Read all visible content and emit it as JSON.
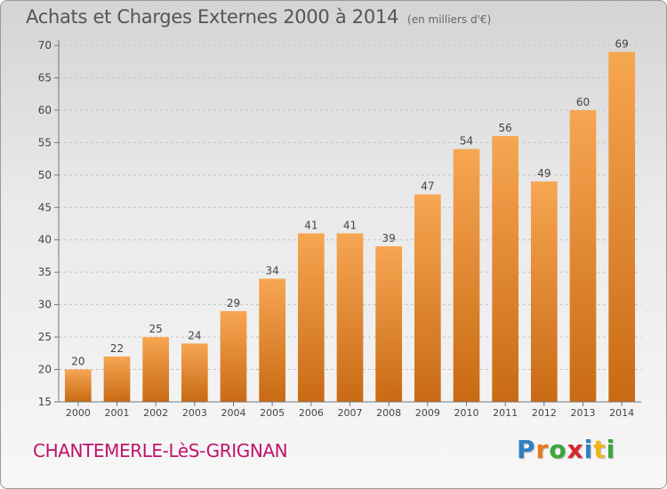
{
  "header": {
    "title": "Achats et Charges Externes 2000 à 2014",
    "subtitle": "(en milliers d'€)"
  },
  "footer": {
    "commune": "CHANTEMERLE-LèS-GRIGNAN",
    "logo_letters": [
      {
        "char": "P",
        "color": "#2f7fc4"
      },
      {
        "char": "r",
        "color": "#e8791a"
      },
      {
        "char": "o",
        "color": "#3aa639"
      },
      {
        "char": "x",
        "color": "#d6262c"
      },
      {
        "char": "i",
        "color": "#2f7fc4"
      },
      {
        "char": "t",
        "color": "#f2b41a"
      },
      {
        "char": "i",
        "color": "#3aa639"
      }
    ]
  },
  "colors": {
    "bar_top": "#f7a652",
    "bar_bottom": "#c96a14",
    "grid": "#c4c4c4",
    "axis": "#777777",
    "text": "#444444"
  },
  "chart_data": {
    "type": "bar",
    "categories": [
      "2000",
      "2001",
      "2002",
      "2003",
      "2004",
      "2005",
      "2006",
      "2007",
      "2008",
      "2009",
      "2010",
      "2011",
      "2012",
      "2013",
      "2014"
    ],
    "values": [
      20,
      22,
      25,
      24,
      29,
      34,
      41,
      41,
      39,
      47,
      54,
      56,
      49,
      60,
      69
    ],
    "title": "Achats et Charges Externes 2000 à 2014",
    "xlabel": "",
    "ylabel": "",
    "ylim": [
      15,
      70
    ],
    "yticks": [
      15,
      20,
      25,
      30,
      35,
      40,
      45,
      50,
      55,
      60,
      65,
      70
    ],
    "grid": true,
    "data_labels": true
  }
}
